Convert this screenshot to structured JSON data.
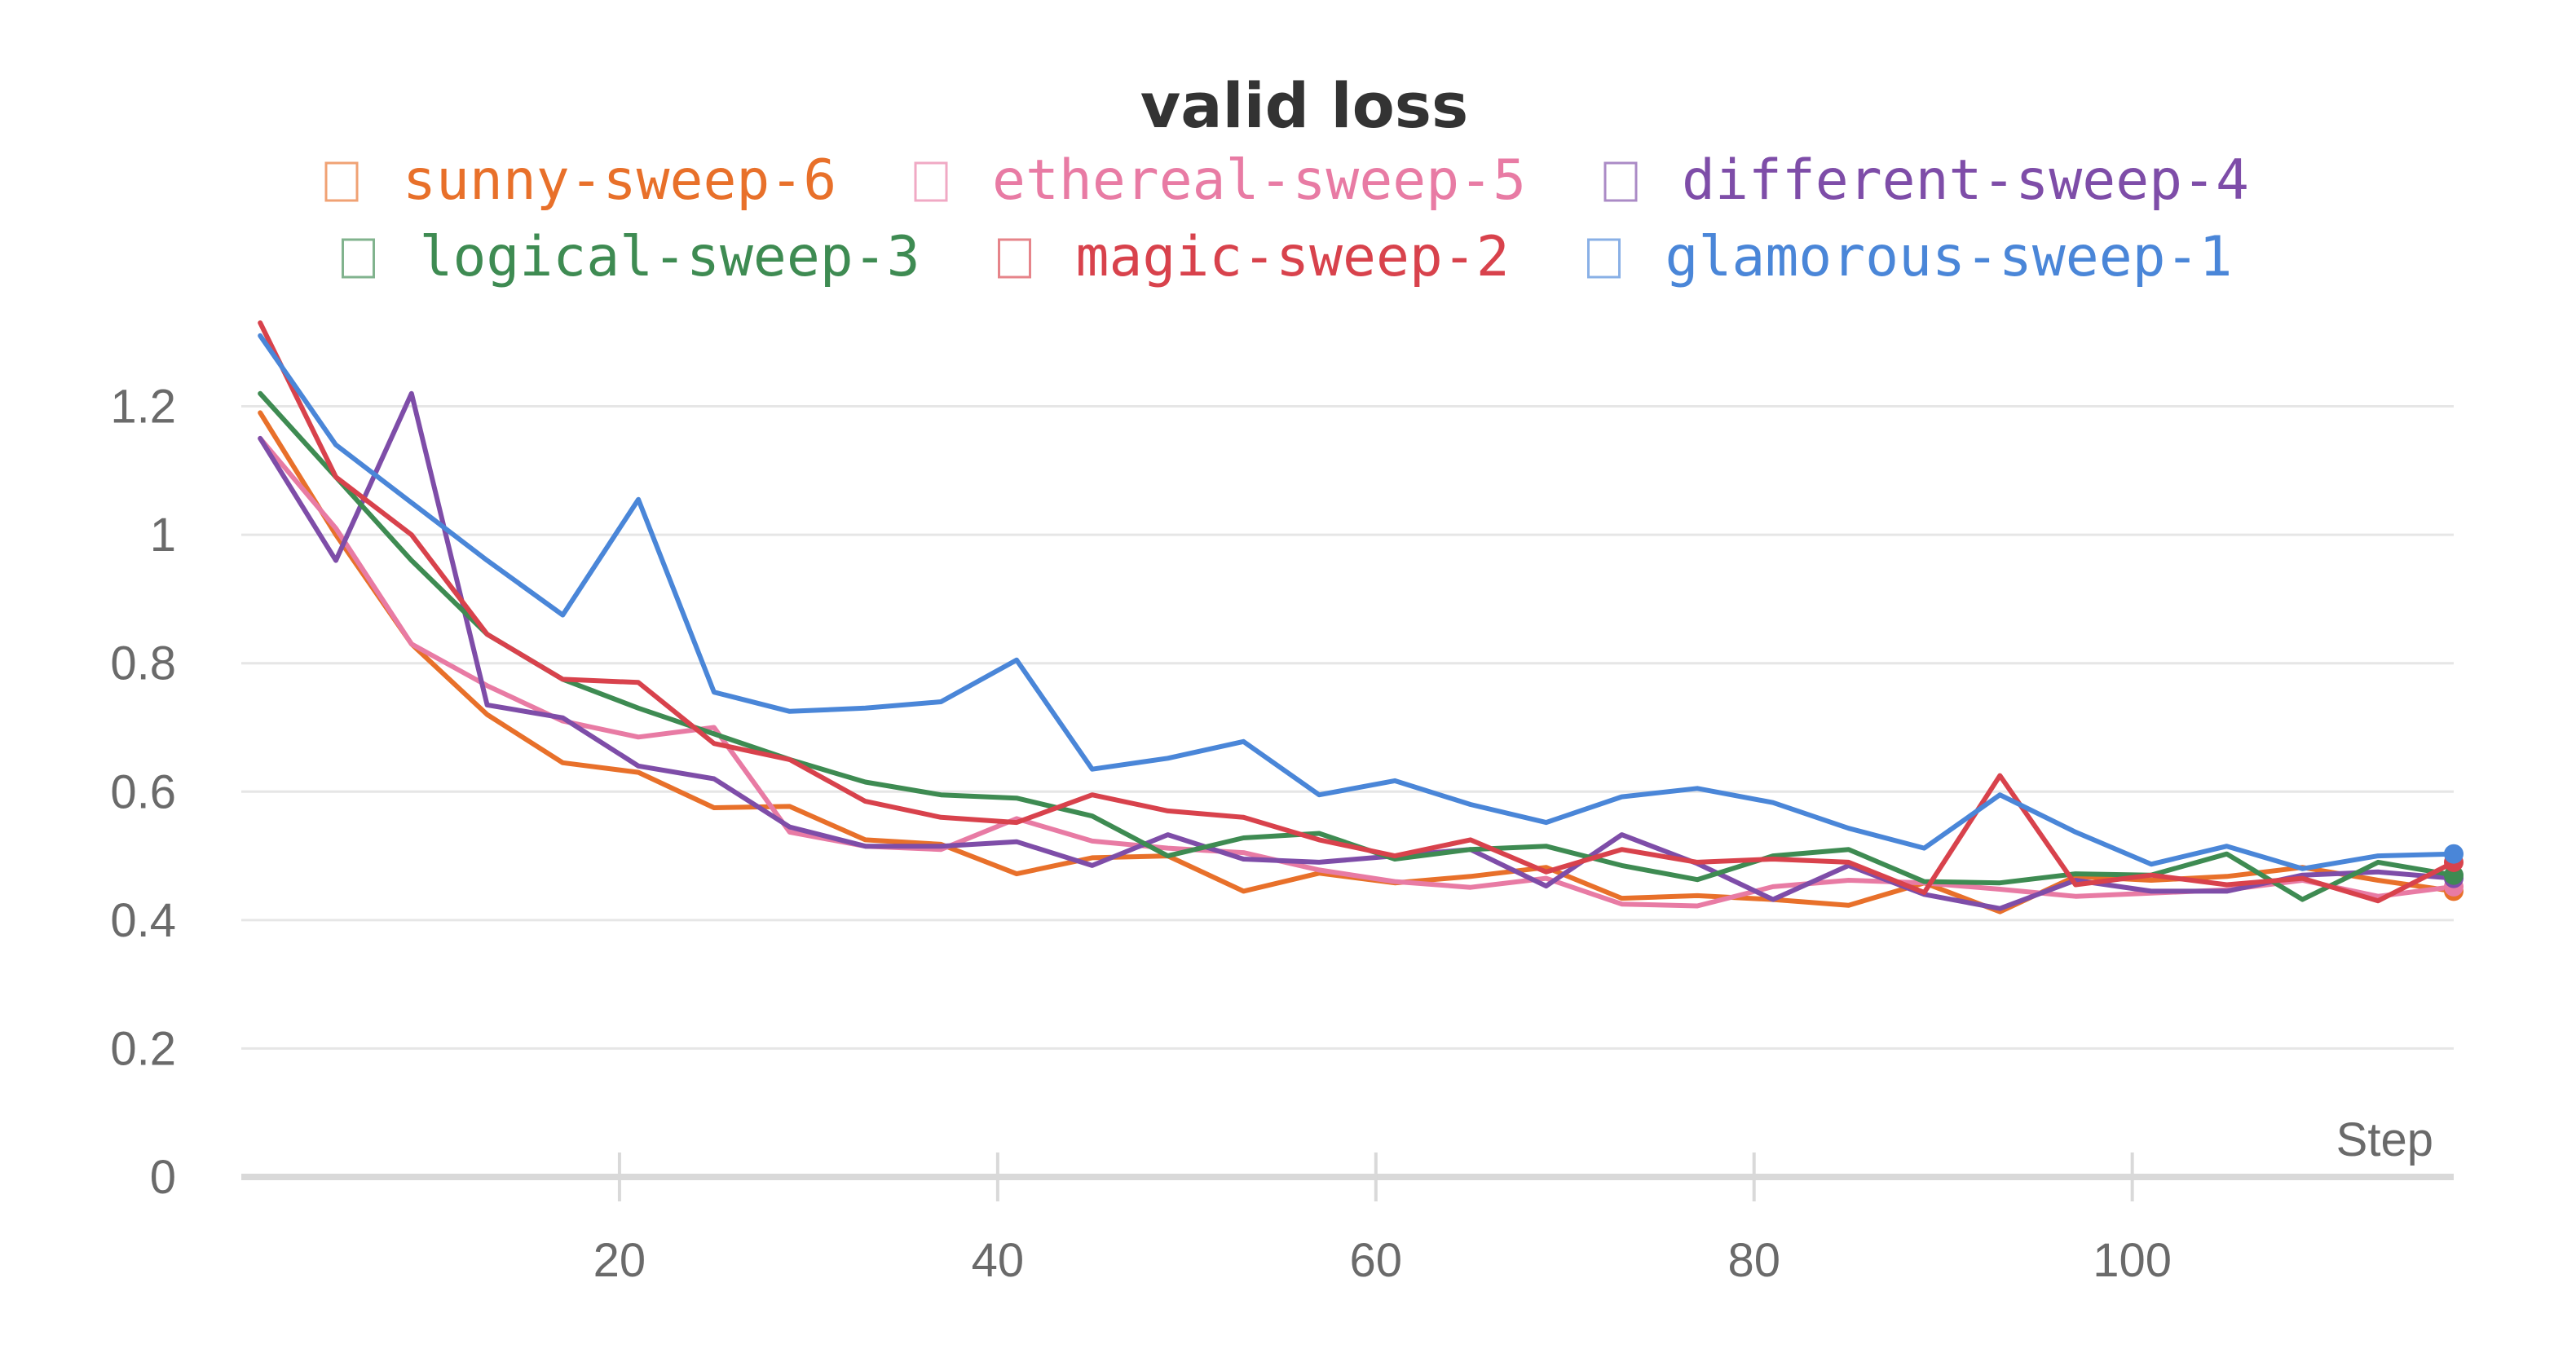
{
  "chart_data": {
    "type": "line",
    "title": "valid loss",
    "xlabel": "Step",
    "ylabel": "",
    "xlim": [
      0,
      117
    ],
    "ylim": [
      0,
      1.32
    ],
    "xticks": [
      20,
      40,
      60,
      80,
      100
    ],
    "yticks": [
      0,
      0.2,
      0.4,
      0.6,
      0.8,
      1,
      1.2
    ],
    "ytick_labels": [
      "0",
      "0.2",
      "0.4",
      "0.6",
      "0.8",
      "1",
      "1.2"
    ],
    "grid": true,
    "legend_position": "top",
    "x": [
      1,
      5,
      9,
      13,
      17,
      21,
      25,
      29,
      33,
      37,
      41,
      45,
      49,
      53,
      57,
      61,
      65,
      69,
      73,
      77,
      81,
      85,
      89,
      93,
      97,
      101,
      105,
      109,
      113,
      117
    ],
    "series": [
      {
        "name": "sunny-sweep-6",
        "color": "#e8702a",
        "values": [
          1.19,
          1.0,
          0.83,
          0.72,
          0.645,
          0.63,
          0.575,
          0.577,
          0.525,
          0.518,
          0.472,
          0.497,
          0.5,
          0.445,
          0.473,
          0.458,
          0.468,
          0.482,
          0.434,
          0.438,
          0.432,
          0.423,
          0.458,
          0.413,
          0.468,
          0.462,
          0.468,
          0.482,
          0.462,
          0.445
        ]
      },
      {
        "name": "ethereal-sweep-5",
        "color": "#e87ba4",
        "values": [
          1.15,
          1.01,
          0.83,
          0.765,
          0.71,
          0.685,
          0.7,
          0.537,
          0.515,
          0.51,
          0.558,
          0.523,
          0.512,
          0.505,
          0.478,
          0.46,
          0.451,
          0.465,
          0.425,
          0.422,
          0.452,
          0.462,
          0.458,
          0.448,
          0.437,
          0.442,
          0.447,
          0.462,
          0.437,
          0.452
        ]
      },
      {
        "name": "different-sweep-4",
        "color": "#7e4da8",
        "values": [
          1.15,
          0.96,
          1.22,
          0.735,
          0.715,
          0.64,
          0.62,
          0.545,
          0.515,
          0.515,
          0.522,
          0.485,
          0.533,
          0.495,
          0.49,
          0.5,
          0.51,
          0.453,
          0.533,
          0.488,
          0.432,
          0.485,
          0.44,
          0.418,
          0.462,
          0.445,
          0.445,
          0.47,
          0.475,
          0.465
        ]
      },
      {
        "name": "logical-sweep-3",
        "color": "#3e8b52",
        "values": [
          1.22,
          1.09,
          0.96,
          0.845,
          0.775,
          0.73,
          0.69,
          0.65,
          0.615,
          0.595,
          0.59,
          0.562,
          0.5,
          0.528,
          0.535,
          0.495,
          0.51,
          0.515,
          0.485,
          0.463,
          0.5,
          0.51,
          0.46,
          0.458,
          0.472,
          0.47,
          0.503,
          0.432,
          0.49,
          0.47
        ]
      },
      {
        "name": "magic-sweep-2",
        "color": "#d8424c",
        "values": [
          1.33,
          1.09,
          1.0,
          0.845,
          0.775,
          0.77,
          0.675,
          0.65,
          0.585,
          0.56,
          0.552,
          0.595,
          0.57,
          0.56,
          0.525,
          0.5,
          0.525,
          0.475,
          0.51,
          0.49,
          0.495,
          0.49,
          0.443,
          0.625,
          0.455,
          0.47,
          0.455,
          0.465,
          0.43,
          0.49
        ]
      },
      {
        "name": "glamorous-sweep-1",
        "color": "#4a86d8",
        "values": [
          1.31,
          1.14,
          1.05,
          0.96,
          0.875,
          1.055,
          0.755,
          0.725,
          0.73,
          0.74,
          0.805,
          0.635,
          0.652,
          0.678,
          0.595,
          0.617,
          0.58,
          0.552,
          0.592,
          0.605,
          0.583,
          0.543,
          0.512,
          0.595,
          0.537,
          0.487,
          0.515,
          0.48,
          0.5,
          0.503
        ]
      }
    ]
  }
}
